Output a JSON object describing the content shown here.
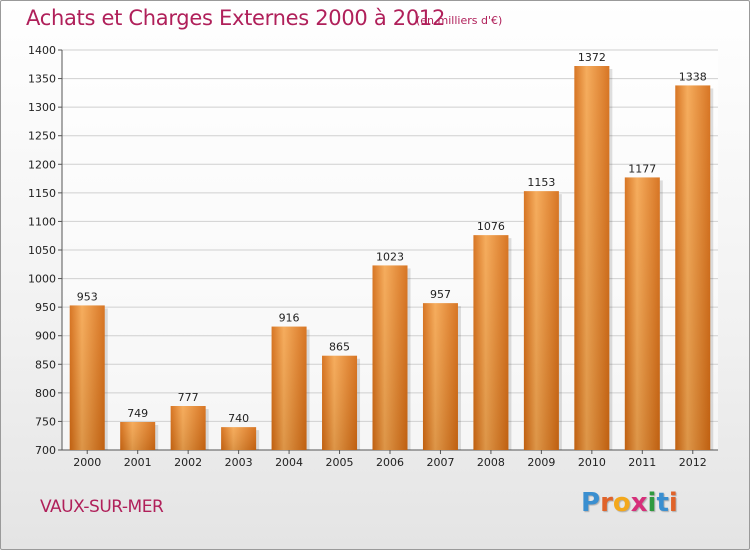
{
  "header": {
    "title": "Achats et Charges Externes 2000 à 2012",
    "unit": "(en milliers d'€)"
  },
  "footer": {
    "location": "VAUX-SUR-MER",
    "brand_letters": [
      {
        "char": "P",
        "color": "#3a8fd0"
      },
      {
        "char": "r",
        "color": "#e0632a"
      },
      {
        "char": "o",
        "color": "#f3a81c"
      },
      {
        "char": "x",
        "color": "#d62f7a"
      },
      {
        "char": "i",
        "color": "#2f9a3f"
      },
      {
        "char": "t",
        "color": "#3a8fd0"
      },
      {
        "char": "i",
        "color": "#e0632a"
      }
    ]
  },
  "colors": {
    "accent": "#b0205a",
    "bar_light": "#f5a650",
    "bar_dark": "#d46a12",
    "grid": "#d0d0d0"
  },
  "chart_data": {
    "type": "bar",
    "title": "Achats et Charges Externes 2000 à 2012",
    "ylabel": "en milliers d'€",
    "xlabel": "",
    "categories": [
      "2000",
      "2001",
      "2002",
      "2003",
      "2004",
      "2005",
      "2006",
      "2007",
      "2008",
      "2009",
      "2010",
      "2011",
      "2012"
    ],
    "values": [
      953,
      749,
      777,
      740,
      916,
      865,
      1023,
      957,
      1076,
      1153,
      1372,
      1177,
      1338
    ],
    "ylim": [
      700,
      1400
    ],
    "yticks": [
      700,
      750,
      800,
      850,
      900,
      950,
      1000,
      1050,
      1100,
      1150,
      1200,
      1250,
      1300,
      1350,
      1400
    ],
    "grid": true,
    "legend": "none"
  }
}
